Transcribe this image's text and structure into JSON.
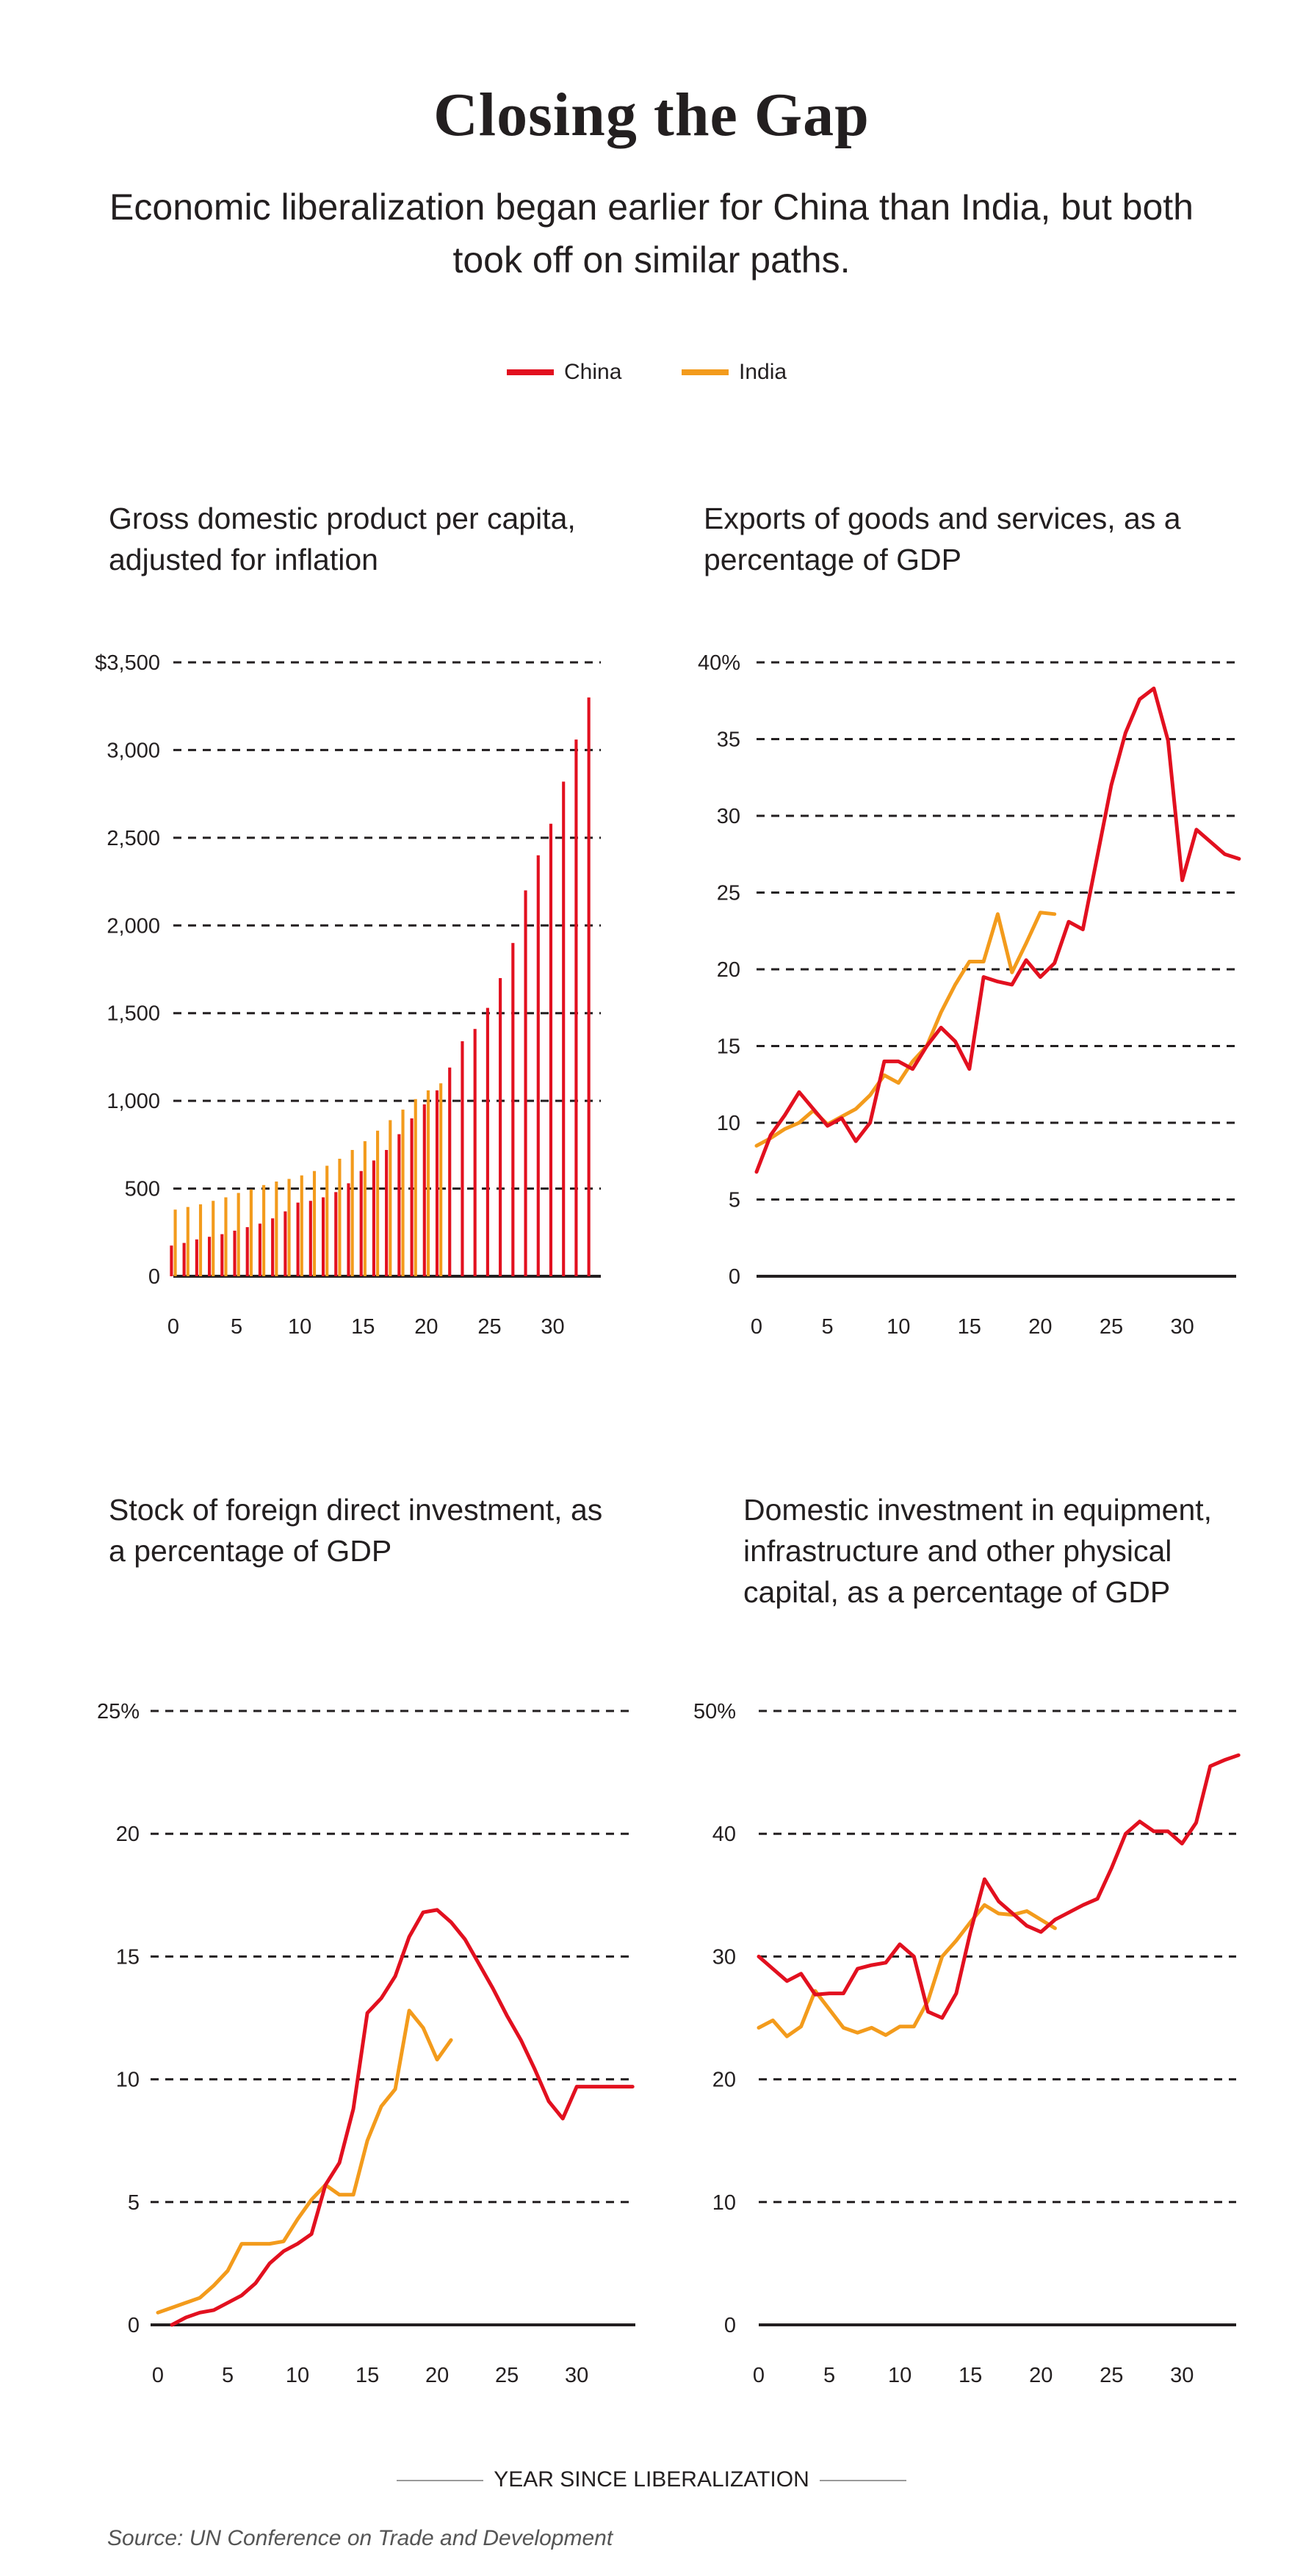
{
  "title": "Closing  the Gap",
  "subtitle": "Economic liberalization began earlier for China than India, but both took off on similar paths.",
  "legend": [
    {
      "label": "China",
      "color": "#e2101f"
    },
    {
      "label": "India",
      "color": "#f39b1c"
    }
  ],
  "footer": {
    "x_axis_label": "YEAR SINCE LIBERALIZATION",
    "source": "Source: UN Conference on Trade and Development"
  },
  "chart_data": [
    {
      "type": "bar",
      "title": "Gross domestic product per capita, adjusted for inflation",
      "ylim": [
        0,
        3500
      ],
      "yticks": [
        0,
        500,
        1000,
        1500,
        2000,
        2500,
        3000,
        3500
      ],
      "ytick_labels": [
        "0",
        "500",
        "1,000",
        "1,500",
        "2,000",
        "2,500",
        "3,000",
        "$3,500"
      ],
      "xticks": [
        0,
        5,
        10,
        15,
        20,
        25,
        30
      ],
      "xtick_labels": [
        "0",
        "5",
        "10",
        "15",
        "20",
        "25",
        "30"
      ],
      "grid": "dashed horizontal",
      "series": [
        {
          "name": "China",
          "x": [
            0,
            1,
            2,
            3,
            4,
            5,
            6,
            7,
            8,
            9,
            10,
            11,
            12,
            13,
            14,
            15,
            16,
            17,
            18,
            19,
            20,
            21,
            22,
            23,
            24,
            25,
            26,
            27,
            28,
            29,
            30,
            31,
            32,
            33
          ],
          "values": [
            175,
            190,
            210,
            225,
            240,
            260,
            280,
            300,
            330,
            370,
            420,
            430,
            450,
            480,
            530,
            600,
            660,
            720,
            810,
            900,
            980,
            1060,
            1190,
            1340,
            1410,
            1530,
            1700,
            1900,
            2200,
            2400,
            2580,
            2820,
            3060,
            3300
          ]
        },
        {
          "name": "India",
          "x": [
            0,
            1,
            2,
            3,
            4,
            5,
            6,
            7,
            8,
            9,
            10,
            11,
            12,
            13,
            14,
            15,
            16,
            17,
            18,
            19,
            20,
            21
          ],
          "values": [
            380,
            395,
            410,
            430,
            450,
            475,
            495,
            520,
            540,
            555,
            575,
            600,
            630,
            670,
            720,
            770,
            830,
            890,
            950,
            1010,
            1060,
            1100
          ]
        }
      ]
    },
    {
      "type": "line",
      "title": "Exports of goods and services, as a percentage of GDP",
      "ylim": [
        0,
        40
      ],
      "yticks": [
        0,
        5,
        10,
        15,
        20,
        25,
        30,
        35,
        40
      ],
      "ytick_labels": [
        "0",
        "5",
        "10",
        "15",
        "20",
        "25",
        "30",
        "35",
        "40%"
      ],
      "xticks": [
        0,
        5,
        10,
        15,
        20,
        25,
        30
      ],
      "xtick_labels": [
        "0",
        "5",
        "10",
        "15",
        "20",
        "25",
        "30"
      ],
      "grid": "dashed horizontal",
      "series": [
        {
          "name": "China",
          "x": [
            0,
            1,
            2,
            3,
            4,
            5,
            6,
            7,
            8,
            9,
            10,
            11,
            12,
            13,
            14,
            15,
            16,
            17,
            18,
            19,
            20,
            21,
            22,
            23,
            24,
            25,
            26,
            27,
            28,
            29,
            30,
            31,
            32,
            33,
            34
          ],
          "y": [
            6.8,
            9.2,
            10.5,
            12.0,
            10.9,
            9.8,
            10.3,
            8.8,
            10.0,
            14.0,
            14.0,
            13.5,
            15.0,
            16.2,
            15.3,
            13.5,
            19.5,
            19.2,
            19.0,
            20.6,
            19.5,
            20.4,
            23.1,
            22.6,
            27.3,
            32.0,
            35.4,
            37.6,
            38.3,
            34.9,
            25.8,
            29.1,
            28.3,
            27.5,
            27.2
          ]
        },
        {
          "name": "India",
          "x": [
            0,
            1,
            2,
            3,
            4,
            5,
            6,
            7,
            8,
            9,
            10,
            11,
            12,
            13,
            14,
            15,
            16,
            17,
            18,
            19,
            20,
            21
          ],
          "y": [
            8.5,
            9.0,
            9.6,
            10.0,
            10.8,
            9.9,
            10.4,
            10.9,
            11.8,
            13.1,
            12.6,
            14.0,
            15.0,
            17.2,
            19.0,
            20.5,
            20.5,
            23.6,
            19.8,
            21.7,
            23.7,
            23.6
          ]
        }
      ]
    },
    {
      "type": "line",
      "title": "Stock of foreign direct investment, as a percentage of GDP",
      "ylim": [
        0,
        25
      ],
      "yticks": [
        0,
        5,
        10,
        15,
        20,
        25
      ],
      "ytick_labels": [
        "0",
        "5",
        "10",
        "15",
        "20",
        "25%"
      ],
      "xticks": [
        0,
        5,
        10,
        15,
        20,
        25,
        30
      ],
      "xtick_labels": [
        "0",
        "5",
        "10",
        "15",
        "20",
        "25",
        "30"
      ],
      "grid": "dashed horizontal",
      "series": [
        {
          "name": "China",
          "x": [
            1,
            2,
            3,
            4,
            5,
            6,
            7,
            8,
            9,
            10,
            11,
            12,
            13,
            14,
            15,
            16,
            17,
            18,
            19,
            20,
            21,
            22,
            23,
            24,
            25,
            26,
            27,
            28,
            29,
            30,
            31,
            32,
            33,
            34
          ],
          "y": [
            0.0,
            0.3,
            0.5,
            0.6,
            0.9,
            1.2,
            1.7,
            2.5,
            3.0,
            3.3,
            3.7,
            5.7,
            6.6,
            8.8,
            12.7,
            13.3,
            14.2,
            15.8,
            16.8,
            16.9,
            16.4,
            15.7,
            14.7,
            13.7,
            12.6,
            11.6,
            10.4,
            9.1,
            8.4,
            9.7,
            9.7,
            9.7,
            9.7,
            9.7
          ]
        },
        {
          "name": "India",
          "x": [
            0,
            1,
            2,
            3,
            4,
            5,
            6,
            7,
            8,
            9,
            10,
            11,
            12,
            13,
            14,
            15,
            16,
            17,
            18,
            19,
            20,
            21
          ],
          "y": [
            0.5,
            0.7,
            0.9,
            1.1,
            1.6,
            2.2,
            3.3,
            3.3,
            3.3,
            3.4,
            4.3,
            5.1,
            5.7,
            5.3,
            5.3,
            7.5,
            8.9,
            9.6,
            12.8,
            12.1,
            10.8,
            11.6
          ]
        }
      ]
    },
    {
      "type": "line",
      "title": "Domestic investment in equipment, infrastructure and other physical capital, as a percentage of GDP",
      "ylim": [
        0,
        50
      ],
      "yticks": [
        0,
        10,
        20,
        30,
        40,
        50
      ],
      "ytick_labels": [
        "0",
        "10",
        "20",
        "30",
        "40",
        "50%"
      ],
      "xticks": [
        0,
        5,
        10,
        15,
        20,
        25,
        30
      ],
      "xtick_labels": [
        "0",
        "5",
        "10",
        "15",
        "20",
        "25",
        "30"
      ],
      "grid": "dashed horizontal",
      "series": [
        {
          "name": "China",
          "x": [
            0,
            1,
            2,
            3,
            4,
            5,
            6,
            7,
            8,
            9,
            10,
            11,
            12,
            13,
            14,
            15,
            16,
            17,
            18,
            19,
            20,
            21,
            22,
            23,
            24,
            25,
            26,
            27,
            28,
            29,
            30,
            31,
            32,
            33,
            34
          ],
          "y": [
            30,
            29,
            28,
            28.6,
            26.9,
            27,
            27,
            29,
            29.3,
            29.5,
            31,
            30,
            25.5,
            25,
            27,
            32,
            36.3,
            34.5,
            33.5,
            32.5,
            32,
            33,
            33.6,
            34.2,
            34.7,
            37.2,
            40,
            41,
            40.2,
            40.2,
            39.2,
            40.9,
            45.5,
            46,
            46.4
          ]
        },
        {
          "name": "India",
          "x": [
            0,
            1,
            2,
            3,
            4,
            5,
            6,
            7,
            8,
            9,
            10,
            11,
            12,
            13,
            14,
            15,
            16,
            17,
            18,
            19,
            20,
            21
          ],
          "y": [
            24.2,
            24.8,
            23.5,
            24.3,
            27.2,
            25.7,
            24.2,
            23.8,
            24.2,
            23.6,
            24.3,
            24.3,
            26.4,
            30,
            31.3,
            32.8,
            34.2,
            33.5,
            33.4,
            33.7,
            33,
            32.3
          ]
        }
      ]
    }
  ]
}
